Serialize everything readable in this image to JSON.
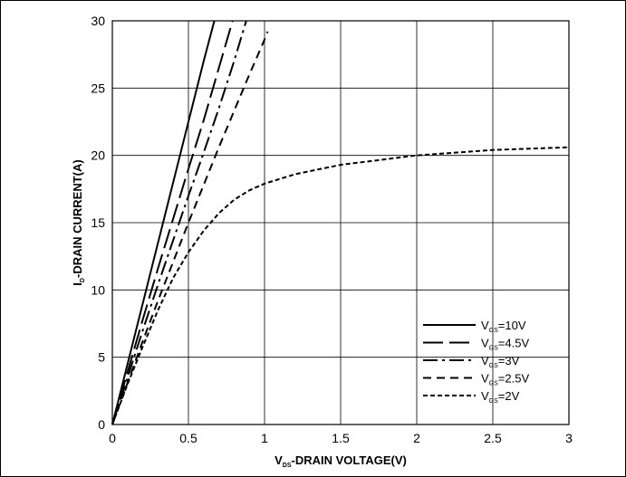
{
  "chart_data": {
    "type": "line",
    "title": "",
    "xlabel": {
      "main": "V",
      "sub": "DS",
      "rest": "-DRAIN VOLTAGE(V)"
    },
    "ylabel": {
      "main": "I",
      "sub": "D",
      "rest": "-DRAIN CURRENT(A)"
    },
    "xlim": [
      0,
      3
    ],
    "ylim": [
      0,
      30
    ],
    "x_ticks": [
      "0",
      "0.5",
      "1",
      "1.5",
      "2",
      "2.5",
      "3"
    ],
    "y_ticks": [
      "0",
      "5",
      "10",
      "15",
      "20",
      "25",
      "30"
    ],
    "grid": true,
    "legend_position": "bottom-right",
    "series": [
      {
        "name": "VGS=10V",
        "label_main": "V",
        "label_sub": "GS",
        "label_rest": "=10V",
        "dash": "solid",
        "x": [
          0,
          0.1,
          0.2,
          0.3,
          0.4,
          0.5,
          0.6,
          0.67
        ],
        "y": [
          0,
          4.5,
          9.0,
          13.5,
          18.0,
          22.5,
          27.0,
          30.0
        ]
      },
      {
        "name": "VGS=4.5V",
        "label_main": "V",
        "label_sub": "GS",
        "label_rest": "=4.5V",
        "dash": "long-dash",
        "x": [
          0,
          0.1,
          0.2,
          0.3,
          0.4,
          0.5,
          0.6,
          0.7,
          0.79
        ],
        "y": [
          0,
          3.9,
          7.8,
          11.6,
          15.3,
          19.0,
          22.6,
          26.5,
          30.0
        ]
      },
      {
        "name": "VGS=3V",
        "label_main": "V",
        "label_sub": "GS",
        "label_rest": "=3V",
        "dash": "dash-dot",
        "x": [
          0,
          0.1,
          0.2,
          0.3,
          0.4,
          0.5,
          0.6,
          0.7,
          0.8,
          0.88
        ],
        "y": [
          0,
          3.5,
          7.0,
          10.4,
          13.7,
          17.0,
          20.2,
          23.5,
          27.0,
          30.0
        ]
      },
      {
        "name": "VGS=2.5V",
        "label_main": "V",
        "label_sub": "GS",
        "label_rest": "=2.5V",
        "dash": "medium-dash",
        "x": [
          0,
          0.1,
          0.2,
          0.3,
          0.4,
          0.5,
          0.6,
          0.7,
          0.8,
          0.9,
          1.0,
          1.02
        ],
        "y": [
          0,
          3.1,
          6.2,
          9.2,
          12.1,
          15.0,
          17.8,
          20.6,
          23.3,
          26.0,
          28.6,
          29.2
        ]
      },
      {
        "name": "VGS=2V",
        "label_main": "V",
        "label_sub": "GS",
        "label_rest": "=2V",
        "dash": "short-dash",
        "x": [
          0,
          0.1,
          0.2,
          0.3,
          0.4,
          0.5,
          0.6,
          0.7,
          0.8,
          0.9,
          1.0,
          1.2,
          1.5,
          2.0,
          2.5,
          3.0
        ],
        "y": [
          0,
          3.0,
          5.8,
          8.5,
          10.9,
          12.8,
          14.4,
          15.7,
          16.7,
          17.4,
          17.9,
          18.6,
          19.3,
          20.0,
          20.4,
          20.6
        ]
      }
    ]
  }
}
